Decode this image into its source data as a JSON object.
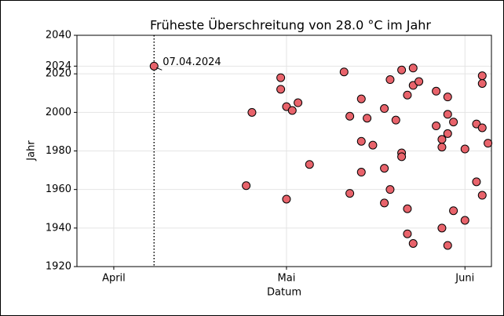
{
  "chart_data": {
    "type": "scatter",
    "title": "Früheste Überschreitung von 28.0 °C im Jahr",
    "x_label": "Datum",
    "y_label": "Jahr",
    "annotation": "07.04.2024",
    "xlim": [
      84.6,
      156.6
    ],
    "ylim": [
      1920,
      2040
    ],
    "xticks": [
      {
        "value": 91,
        "label": "April"
      },
      {
        "value": 121,
        "label": "Mai"
      },
      {
        "value": 152,
        "label": "Juni"
      }
    ],
    "yticks": [
      1920,
      1940,
      1960,
      1980,
      2000,
      2020,
      2024,
      2040
    ],
    "grid": true,
    "color": "#e8636b",
    "x": [
      98,
      114,
      115,
      120,
      120,
      121,
      122,
      123,
      121,
      125,
      131,
      132,
      132,
      134,
      134,
      134,
      135,
      136,
      138,
      138,
      138,
      139,
      139,
      140,
      141,
      141,
      141,
      142,
      142,
      143,
      143,
      144,
      142,
      143,
      147,
      147,
      148,
      148,
      149,
      149,
      149,
      150,
      150,
      148,
      149,
      152,
      152,
      154,
      154,
      155,
      155,
      155,
      156,
      155
    ],
    "values": [
      2024,
      1962,
      2000,
      2018,
      2012,
      2003,
      2001,
      2005,
      1955,
      1973,
      2021,
      1998,
      1958,
      2007,
      1985,
      1969,
      1997,
      1983,
      2002,
      1971,
      1953,
      2017,
      1960,
      1996,
      2022,
      1979,
      1977,
      2009,
      1950,
      2023,
      2014,
      2016,
      1937,
      1932,
      2011,
      1993,
      1986,
      1982,
      2008,
      1999,
      1989,
      1995,
      1949,
      1940,
      1931,
      1981,
      1944,
      1994,
      1964,
      2019,
      2015,
      1992,
      1984,
      1957
    ]
  }
}
